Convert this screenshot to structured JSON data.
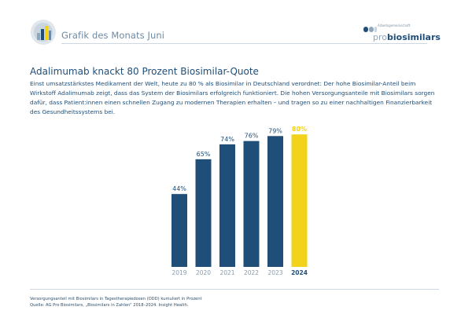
{
  "header": {
    "title": "Grafik des Monats Juni",
    "logo_small_text": "Arbeitsgemeinschaft",
    "logo_brand_pro": "pro",
    "logo_brand_bio": "biosimilars"
  },
  "article": {
    "title": "Adalimumab knackt 80 Prozent Biosimilar-Quote",
    "description": "Einst umsatzstärkstes Medikament der Welt, heute zu 80 % als Biosimilar in Deutschland verordnet: Der hohe Biosimilar-Anteil beim Wirkstoff Adalimumab zeigt, dass das System der Biosimilars erfolgreich funktioniert. Die hohen Versorgungsanteile mit Biosimilars sorgen dafür, dass Patient:innen einen schnellen Zugang zu modernen Therapien erhalten – und tragen so zu einer nachhaltigen Finanzierbarkeit des Gesundheitssystems bei."
  },
  "chart_data": {
    "type": "bar",
    "categories": [
      "2019",
      "2020",
      "2021",
      "2022",
      "2023",
      "2024"
    ],
    "values": [
      44,
      65,
      74,
      76,
      79,
      80
    ],
    "labels": [
      "44%",
      "65%",
      "74%",
      "76%",
      "79%",
      "80%"
    ],
    "highlight_index": 5,
    "ylim": [
      0,
      100
    ],
    "grid": false,
    "colors": {
      "bar": "#1f4e79",
      "highlight": "#f2d21a",
      "label": "#1f4e79",
      "highlight_label": "#f2d21a",
      "tick": "#8a9aaa",
      "highlight_tick": "#1f4e79"
    }
  },
  "footnote": {
    "line1": "Versorgungsanteil mit Biosimilars in Tagestherapiedosen (DDD) kumuliert in Prozent",
    "line2": "Quelle: AG Pro Biosimilars, „Biosimilars in Zahlen“ 2018–2024. Insight Health."
  },
  "colors": {
    "accent_blue": "#1f4e79",
    "accent_yellow": "#f2d21a",
    "light_blue": "#8ea7bd"
  }
}
